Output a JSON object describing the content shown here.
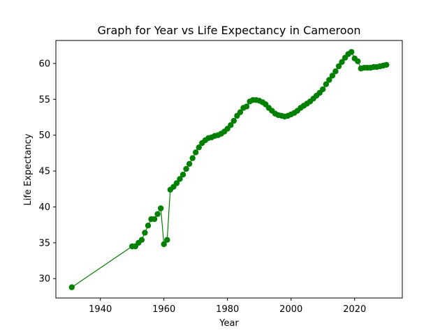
{
  "chart_data": {
    "type": "line",
    "title": "Graph for Year vs Life Expectancy in Cameroon",
    "xlabel": "Year",
    "ylabel": "Life Expectancy",
    "xlim": [
      1926,
      2035
    ],
    "ylim": [
      27.3,
      63.2
    ],
    "xticks": [
      1940,
      1960,
      1980,
      2000,
      2020
    ],
    "yticks": [
      30,
      35,
      40,
      45,
      50,
      55,
      60
    ],
    "grid": false,
    "color": "#008000",
    "marker": "circle",
    "series": [
      {
        "x": [
          1931,
          1950,
          1951,
          1952,
          1953,
          1954,
          1955,
          1956,
          1957,
          1958,
          1959,
          1960,
          1961,
          1962,
          1963,
          1964,
          1965,
          1966,
          1967,
          1968,
          1969,
          1970,
          1971,
          1972,
          1973,
          1974,
          1975,
          1976,
          1977,
          1978,
          1979,
          1980,
          1981,
          1982,
          1983,
          1984,
          1985,
          1986,
          1987,
          1988,
          1989,
          1990,
          1991,
          1992,
          1993,
          1994,
          1995,
          1996,
          1997,
          1998,
          1999,
          2000,
          2001,
          2002,
          2003,
          2004,
          2005,
          2006,
          2007,
          2008,
          2009,
          2010,
          2011,
          2012,
          2013,
          2014,
          2015,
          2016,
          2017,
          2018,
          2019,
          2020,
          2021,
          2022,
          2023,
          2024,
          2025,
          2026,
          2027,
          2028,
          2029,
          2030
        ],
        "y": [
          28.8,
          34.5,
          34.5,
          35.0,
          35.4,
          36.4,
          37.4,
          38.3,
          38.3,
          39.0,
          39.8,
          34.8,
          35.4,
          42.4,
          42.8,
          43.3,
          43.9,
          44.5,
          45.3,
          46.0,
          46.8,
          47.6,
          48.3,
          48.9,
          49.3,
          49.6,
          49.7,
          49.9,
          50.0,
          50.2,
          50.5,
          50.9,
          51.4,
          52.0,
          52.7,
          53.2,
          53.8,
          54.0,
          54.7,
          54.9,
          54.9,
          54.8,
          54.6,
          54.3,
          53.8,
          53.4,
          53.0,
          52.8,
          52.7,
          52.6,
          52.7,
          52.9,
          53.1,
          53.4,
          53.8,
          54.1,
          54.4,
          54.7,
          55.1,
          55.5,
          55.9,
          56.4,
          57.1,
          57.7,
          58.3,
          58.9,
          59.6,
          60.2,
          60.8,
          61.3,
          61.6,
          60.7,
          60.3,
          59.3,
          59.4,
          59.4,
          59.4,
          59.5,
          59.5,
          59.6,
          59.7,
          59.8
        ]
      }
    ]
  }
}
